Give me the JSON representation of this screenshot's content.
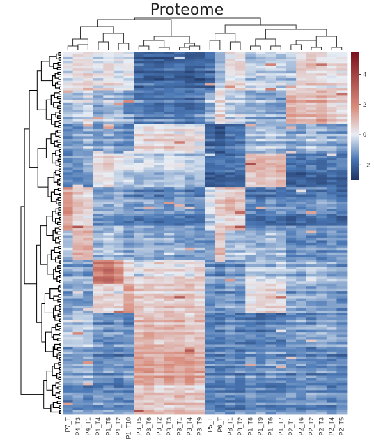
{
  "chart_data": {
    "type": "heatmap",
    "title": "Proteome",
    "xlabel": "",
    "ylabel": "",
    "columns": [
      "P7_T",
      "P4_T3",
      "P4_T1",
      "P1_T4",
      "P1_T5",
      "P1_T2",
      "P1_T10",
      "P3_T5",
      "P3_T6",
      "P3_T2",
      "P3_T3",
      "P3_T1",
      "P3_T4",
      "P3_T9",
      "P5_T",
      "P6_T",
      "P8_T1",
      "P8_T2",
      "P1_T8",
      "P1_T9",
      "P1_T6",
      "P1_T7",
      "P2_T1",
      "P2_T6",
      "P2_T2",
      "P2_T3",
      "P2_T4",
      "P2_T5"
    ],
    "colorbar": {
      "ticks": [
        4,
        2,
        0,
        -2
      ],
      "range": [
        -3,
        5.5
      ],
      "colors": [
        "#1e3260",
        "#4a78b5",
        "#e8eef5",
        "#d98d7d",
        "#7a0e1c"
      ]
    },
    "row_blocks": [
      {
        "rows": 16,
        "values": [
          0.0,
          0.3,
          0.5,
          0.0,
          0.2,
          0.1,
          0.0,
          -1.8,
          -1.9,
          -2.0,
          -1.9,
          -2.0,
          -2.1,
          -2.0,
          -1.7,
          -0.6,
          0.3,
          0.4,
          -0.4,
          -0.3,
          -0.3,
          -0.4,
          -0.5,
          0.6,
          0.7,
          0.5,
          0.2,
          0.3
        ]
      },
      {
        "rows": 14,
        "values": [
          -0.6,
          -0.3,
          0.0,
          -0.8,
          -0.4,
          -0.6,
          -1.0,
          -1.4,
          -1.5,
          -1.4,
          -1.3,
          -1.5,
          -1.6,
          -1.4,
          -0.8,
          0.5,
          -0.2,
          -0.3,
          -0.8,
          -0.7,
          -0.8,
          -0.9,
          1.2,
          0.9,
          1.1,
          1.3,
          0.8,
          0.6
        ]
      },
      {
        "rows": 12,
        "values": [
          -1.2,
          -1.0,
          -0.6,
          -1.1,
          -0.8,
          -1.0,
          -1.3,
          0.4,
          0.6,
          0.5,
          0.6,
          0.4,
          0.5,
          0.3,
          -1.9,
          -2.0,
          -1.6,
          -1.5,
          -0.6,
          -0.5,
          -0.4,
          -0.6,
          -0.9,
          -0.7,
          -0.5,
          -0.6,
          -0.8,
          -0.9
        ]
      },
      {
        "rows": 14,
        "values": [
          -1.4,
          -1.3,
          -1.1,
          0.2,
          0.5,
          0.0,
          -0.3,
          -0.6,
          -0.4,
          -0.5,
          -0.3,
          -0.4,
          -0.6,
          -0.5,
          -2.0,
          -1.9,
          -1.8,
          -1.7,
          0.9,
          1.0,
          0.8,
          1.1,
          -1.9,
          -2.0,
          -1.8,
          -1.9,
          -1.7,
          -1.8
        ]
      },
      {
        "rows": 18,
        "values": [
          1.6,
          0.8,
          0.6,
          -0.9,
          -1.0,
          -0.8,
          -1.2,
          -1.3,
          -1.2,
          -1.4,
          -1.3,
          -1.2,
          -1.4,
          -1.3,
          -0.2,
          0.6,
          0.9,
          0.7,
          -1.5,
          -1.6,
          -1.4,
          -1.5,
          -1.6,
          -1.5,
          -1.4,
          -1.3,
          -1.5,
          -1.6
        ]
      },
      {
        "rows": 12,
        "values": [
          -0.4,
          1.2,
          1.4,
          -0.6,
          -0.3,
          -0.5,
          -0.8,
          -0.7,
          -0.6,
          -0.8,
          -0.5,
          -0.7,
          -0.9,
          -0.8,
          -0.9,
          1.0,
          -0.3,
          -0.4,
          -0.5,
          -0.6,
          -0.4,
          -0.5,
          -1.2,
          -1.1,
          -1.0,
          -1.2,
          -0.9,
          -1.1
        ]
      },
      {
        "rows": 10,
        "values": [
          -1.0,
          -0.9,
          -1.1,
          2.2,
          2.6,
          1.8,
          0.2,
          -0.3,
          0.2,
          0.4,
          0.3,
          0.2,
          0.1,
          0.3,
          -1.2,
          -1.4,
          -1.1,
          -1.2,
          -0.4,
          -0.5,
          -0.6,
          -0.3,
          -0.8,
          -0.9,
          -0.7,
          -0.9,
          -1.0,
          -1.1
        ]
      },
      {
        "rows": 12,
        "values": [
          -1.2,
          -1.1,
          -1.3,
          0.3,
          0.4,
          0.2,
          1.4,
          0.6,
          0.5,
          0.4,
          0.6,
          0.5,
          0.6,
          0.4,
          -1.3,
          -1.4,
          -1.2,
          -1.3,
          0.2,
          0.3,
          0.4,
          0.2,
          -1.1,
          -1.0,
          -1.2,
          -1.1,
          -1.2,
          -1.3
        ]
      },
      {
        "rows": 14,
        "values": [
          -0.5,
          -0.4,
          -0.6,
          -1.2,
          -1.3,
          -1.1,
          -1.4,
          0.9,
          1.1,
          0.8,
          0.9,
          1.0,
          0.7,
          0.9,
          -1.4,
          -1.5,
          -1.3,
          -1.4,
          -1.6,
          -1.7,
          -1.5,
          -1.6,
          -1.1,
          -1.0,
          -1.2,
          -0.9,
          -1.0,
          -1.1
        ]
      },
      {
        "rows": 16,
        "values": [
          -1.1,
          -1.0,
          -0.9,
          -1.5,
          -1.4,
          -1.6,
          -1.3,
          1.3,
          1.5,
          1.2,
          1.4,
          1.3,
          1.5,
          1.2,
          -1.5,
          -1.6,
          -1.4,
          -1.5,
          -1.3,
          -1.4,
          -1.2,
          -1.3,
          -1.4,
          -1.3,
          -1.5,
          -1.4,
          -1.6,
          -1.5
        ]
      },
      {
        "rows": 12,
        "values": [
          -1.5,
          -1.4,
          -1.6,
          -1.3,
          -1.2,
          -1.4,
          -1.5,
          0.6,
          0.7,
          0.5,
          0.6,
          0.8,
          0.6,
          0.5,
          -1.6,
          -1.5,
          -1.7,
          -1.6,
          -1.5,
          -1.4,
          -1.6,
          -1.5,
          -1.3,
          -1.4,
          -1.2,
          -1.3,
          -1.5,
          -1.4
        ]
      }
    ]
  }
}
